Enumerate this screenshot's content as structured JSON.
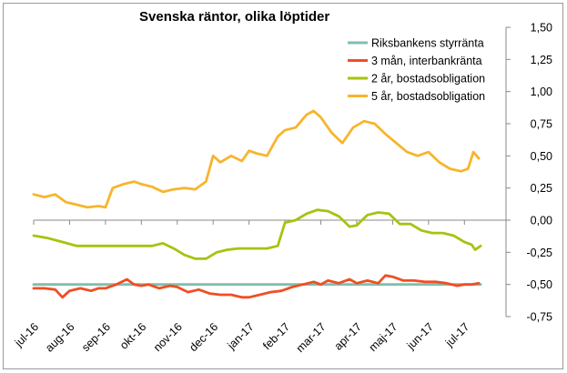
{
  "chart_data": {
    "type": "line",
    "title": "Svenska räntor, olika löptider",
    "xlabel": "",
    "ylabel": "",
    "ylim": [
      -0.75,
      1.5
    ],
    "y_axis_position": "right",
    "y_ticks": [
      "1,50",
      "1,25",
      "1,00",
      "0,75",
      "0,50",
      "0,25",
      "0,00",
      "-0,25",
      "-0,50",
      "-0,75"
    ],
    "y_tick_values": [
      1.5,
      1.25,
      1.0,
      0.75,
      0.5,
      0.25,
      0.0,
      -0.25,
      -0.5,
      -0.75
    ],
    "x_ticks": [
      "jul-16",
      "aug-16",
      "sep-16",
      "okt-16",
      "nov-16",
      "dec-16",
      "jan-17",
      "feb-17",
      "mar-17",
      "apr-17",
      "maj-17",
      "jun-17",
      "jul-17"
    ],
    "x_range": [
      0,
      12.55
    ],
    "grid": false,
    "legend_position": "top-right",
    "series": [
      {
        "name": "Riksbankens styrränta",
        "color": "#7fbfb0",
        "x": [
          0,
          12.45
        ],
        "y": [
          -0.5,
          -0.5
        ]
      },
      {
        "name": "3 mån, interbankränta",
        "color": "#f04e23",
        "x": [
          0,
          0.3,
          0.6,
          0.8,
          1.0,
          1.3,
          1.6,
          1.8,
          2.0,
          2.3,
          2.6,
          2.8,
          3.0,
          3.2,
          3.5,
          3.8,
          4.0,
          4.3,
          4.6,
          4.9,
          5.2,
          5.5,
          5.8,
          6.0,
          6.3,
          6.6,
          6.9,
          7.2,
          7.5,
          7.8,
          8.0,
          8.2,
          8.5,
          8.8,
          9.0,
          9.3,
          9.6,
          9.8,
          10.0,
          10.3,
          10.6,
          10.9,
          11.2,
          11.5,
          11.8,
          12.0,
          12.2,
          12.4
        ],
        "y": [
          -0.53,
          -0.53,
          -0.54,
          -0.6,
          -0.55,
          -0.53,
          -0.55,
          -0.53,
          -0.53,
          -0.5,
          -0.46,
          -0.5,
          -0.51,
          -0.5,
          -0.53,
          -0.51,
          -0.52,
          -0.56,
          -0.54,
          -0.57,
          -0.58,
          -0.58,
          -0.6,
          -0.6,
          -0.58,
          -0.56,
          -0.55,
          -0.52,
          -0.5,
          -0.48,
          -0.5,
          -0.47,
          -0.49,
          -0.46,
          -0.49,
          -0.47,
          -0.49,
          -0.43,
          -0.44,
          -0.47,
          -0.47,
          -0.48,
          -0.48,
          -0.49,
          -0.51,
          -0.5,
          -0.5,
          -0.49
        ]
      },
      {
        "name": "2 år, bostadsobligation",
        "color": "#a8c20f",
        "x": [
          0,
          0.4,
          0.8,
          1.2,
          1.6,
          2.0,
          2.4,
          2.8,
          3.0,
          3.3,
          3.6,
          3.9,
          4.2,
          4.5,
          4.8,
          5.1,
          5.4,
          5.7,
          6.0,
          6.2,
          6.5,
          6.8,
          7.0,
          7.3,
          7.6,
          7.9,
          8.2,
          8.5,
          8.8,
          9.0,
          9.3,
          9.6,
          9.9,
          10.2,
          10.5,
          10.8,
          11.1,
          11.4,
          11.7,
          12.0,
          12.2,
          12.3,
          12.45
        ],
        "y": [
          -0.12,
          -0.14,
          -0.17,
          -0.2,
          -0.2,
          -0.2,
          -0.2,
          -0.2,
          -0.2,
          -0.2,
          -0.18,
          -0.22,
          -0.27,
          -0.3,
          -0.3,
          -0.25,
          -0.23,
          -0.22,
          -0.22,
          -0.22,
          -0.22,
          -0.2,
          -0.02,
          0.0,
          0.05,
          0.08,
          0.07,
          0.03,
          -0.05,
          -0.04,
          0.04,
          0.06,
          0.05,
          -0.03,
          -0.03,
          -0.08,
          -0.1,
          -0.1,
          -0.12,
          -0.17,
          -0.19,
          -0.23,
          -0.2
        ]
      },
      {
        "name": "5 år, bostadsobligation",
        "color": "#f7b52d",
        "x": [
          0,
          0.3,
          0.6,
          0.9,
          1.2,
          1.5,
          1.8,
          2.0,
          2.2,
          2.5,
          2.8,
          3.0,
          3.3,
          3.6,
          3.9,
          4.2,
          4.5,
          4.8,
          5.0,
          5.2,
          5.5,
          5.8,
          6.0,
          6.2,
          6.5,
          6.8,
          7.0,
          7.3,
          7.6,
          7.8,
          8.0,
          8.3,
          8.6,
          8.9,
          9.2,
          9.5,
          9.8,
          10.1,
          10.4,
          10.7,
          11.0,
          11.3,
          11.6,
          11.9,
          12.1,
          12.25,
          12.4
        ],
        "y": [
          0.2,
          0.18,
          0.2,
          0.14,
          0.12,
          0.1,
          0.11,
          0.1,
          0.25,
          0.28,
          0.3,
          0.28,
          0.26,
          0.22,
          0.24,
          0.25,
          0.24,
          0.3,
          0.5,
          0.45,
          0.5,
          0.46,
          0.54,
          0.52,
          0.5,
          0.65,
          0.7,
          0.72,
          0.82,
          0.85,
          0.8,
          0.68,
          0.6,
          0.72,
          0.77,
          0.75,
          0.67,
          0.6,
          0.53,
          0.5,
          0.53,
          0.45,
          0.4,
          0.38,
          0.4,
          0.53,
          0.48
        ]
      }
    ]
  }
}
